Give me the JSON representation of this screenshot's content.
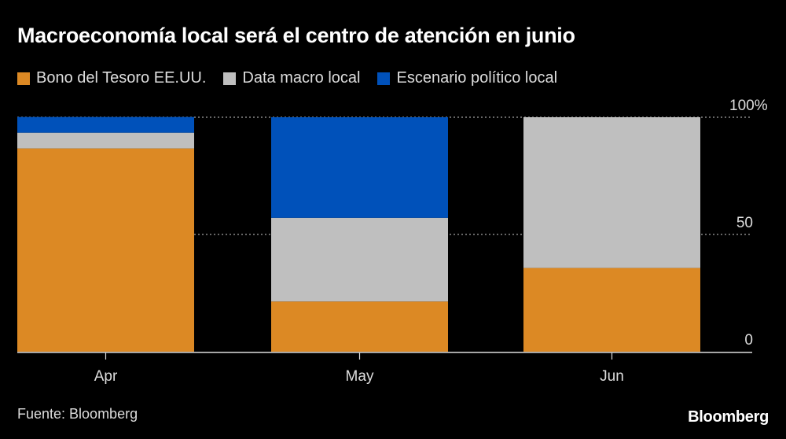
{
  "chart_data": {
    "type": "bar",
    "stacked": true,
    "title": "Macroeconomía local será el centro de atención en junio",
    "categories": [
      "Apr",
      "May",
      "Jun"
    ],
    "series": [
      {
        "name": "Bono del Tesoro EE.UU.",
        "color": "#dc8924",
        "values": [
          86.7,
          21.4,
          35.7
        ]
      },
      {
        "name": "Data macro local",
        "color": "#bfbfbf",
        "values": [
          6.7,
          35.7,
          64.3
        ]
      },
      {
        "name": "Escenario político local",
        "color": "#0051ba",
        "values": [
          6.7,
          42.9,
          0
        ]
      }
    ],
    "ylim": [
      0,
      100
    ],
    "yticks": [
      "0",
      "50",
      "100%"
    ],
    "ytick_values": [
      0,
      50,
      100
    ],
    "grid": true,
    "legend_placement": "top-left",
    "source": "Fuente: Bloomberg",
    "brand": "Bloomberg"
  }
}
